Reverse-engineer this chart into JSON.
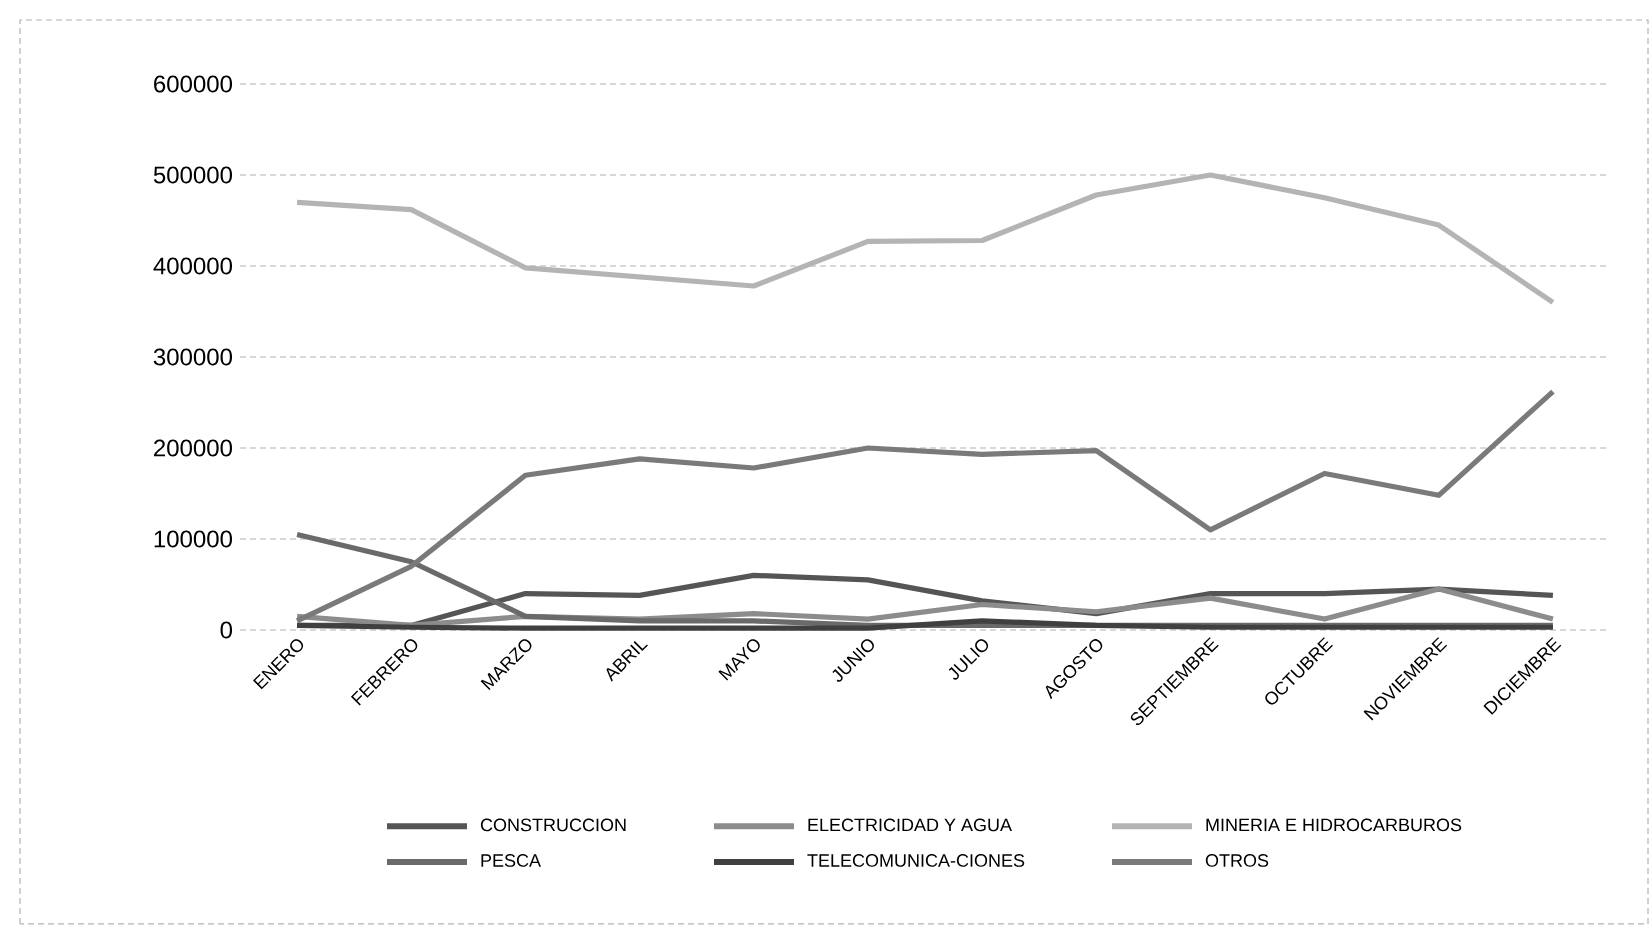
{
  "chart_data": {
    "type": "line",
    "categories": [
      "ENERO",
      "FEBRERO",
      "MARZO",
      "ABRIL",
      "MAYO",
      "JUNIO",
      "JULIO",
      "AGOSTO",
      "SEPTIEMBRE",
      "OCTUBRE",
      "NOVIEMBRE",
      "DICIEMBRE"
    ],
    "series": [
      {
        "name": "CONSTRUCCION",
        "color": "#555555",
        "values": [
          5000,
          5000,
          40000,
          38000,
          60000,
          55000,
          32000,
          18000,
          40000,
          40000,
          45000,
          38000
        ]
      },
      {
        "name": "ELECTRICIDAD Y AGUA",
        "color": "#8c8c8c",
        "values": [
          15000,
          5000,
          15000,
          12000,
          18000,
          12000,
          28000,
          20000,
          35000,
          12000,
          45000,
          12000
        ]
      },
      {
        "name": "MINERIA E HIDROCARBUROS",
        "color": "#b4b4b4",
        "values": [
          470000,
          462000,
          398000,
          388000,
          378000,
          427000,
          428000,
          478000,
          500000,
          475000,
          445000,
          360000
        ]
      },
      {
        "name": "PESCA",
        "color": "#6a6a6a",
        "values": [
          105000,
          75000,
          15000,
          10000,
          10000,
          5000,
          5000,
          5000,
          5000,
          5000,
          5000,
          5000
        ]
      },
      {
        "name": "TELECOMUNICA-CIONES",
        "color": "#404040",
        "values": [
          5000,
          3000,
          2000,
          2000,
          2000,
          2000,
          10000,
          5000,
          3000,
          3000,
          3000,
          3000
        ]
      },
      {
        "name": "OTROS",
        "color": "#7a7a7a",
        "values": [
          10000,
          70000,
          170000,
          188000,
          178000,
          200000,
          193000,
          197000,
          110000,
          172000,
          148000,
          262000
        ]
      }
    ],
    "ylim": [
      0,
      600000
    ],
    "yticks": [
      0,
      100000,
      200000,
      300000,
      400000,
      500000,
      600000
    ],
    "grid": "y",
    "legend": "bottom",
    "marker": "none",
    "line_style": "solid"
  }
}
